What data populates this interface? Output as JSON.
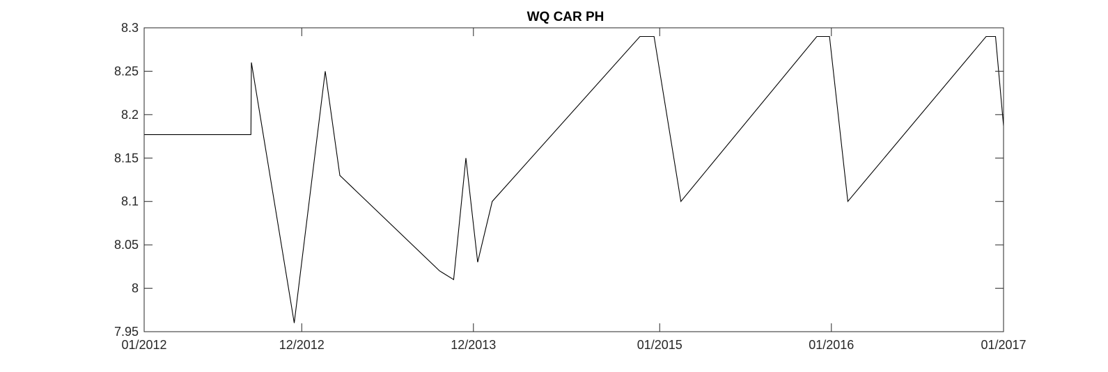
{
  "chart_data": {
    "type": "line",
    "title": "WQ CAR PH",
    "xlabel": "",
    "ylabel": "",
    "xlim": [
      "2012-01-01",
      "2017-01-01"
    ],
    "ylim": [
      7.95,
      8.3
    ],
    "grid": false,
    "x_ticks": [
      {
        "date": "2012-01-01",
        "label": "01/2012"
      },
      {
        "date": "2012-12-01",
        "label": "12/2012"
      },
      {
        "date": "2013-12-01",
        "label": "12/2013"
      },
      {
        "date": "2015-01-01",
        "label": "01/2015"
      },
      {
        "date": "2016-01-01",
        "label": "01/2016"
      },
      {
        "date": "2017-01-01",
        "label": "01/2017"
      }
    ],
    "y_ticks": [
      {
        "value": 7.95,
        "label": "7.95"
      },
      {
        "value": 8.0,
        "label": "8"
      },
      {
        "value": 8.05,
        "label": "8.05"
      },
      {
        "value": 8.1,
        "label": "8.1"
      },
      {
        "value": 8.15,
        "label": "8.15"
      },
      {
        "value": 8.2,
        "label": "8.2"
      },
      {
        "value": 8.25,
        "label": "8.25"
      },
      {
        "value": 8.3,
        "label": "8.3"
      }
    ],
    "series": [
      {
        "color": "#000000",
        "points": [
          {
            "x": "2012-01-01",
            "y": 8.177
          },
          {
            "x": "2012-08-15",
            "y": 8.177
          },
          {
            "x": "2012-08-16",
            "y": 8.26
          },
          {
            "x": "2012-11-15",
            "y": 7.96
          },
          {
            "x": "2013-01-20",
            "y": 8.25
          },
          {
            "x": "2013-02-20",
            "y": 8.13
          },
          {
            "x": "2013-09-20",
            "y": 8.02
          },
          {
            "x": "2013-10-20",
            "y": 8.01
          },
          {
            "x": "2013-11-15",
            "y": 8.15
          },
          {
            "x": "2013-12-10",
            "y": 8.03
          },
          {
            "x": "2014-01-10",
            "y": 8.1
          },
          {
            "x": "2014-11-20",
            "y": 8.29
          },
          {
            "x": "2014-12-20",
            "y": 8.29
          },
          {
            "x": "2015-02-15",
            "y": 8.1
          },
          {
            "x": "2015-12-01",
            "y": 8.29
          },
          {
            "x": "2015-12-28",
            "y": 8.29
          },
          {
            "x": "2016-02-05",
            "y": 8.1
          },
          {
            "x": "2016-11-25",
            "y": 8.29
          },
          {
            "x": "2016-12-15",
            "y": 8.29
          },
          {
            "x": "2017-01-01",
            "y": 8.187
          }
        ]
      }
    ]
  }
}
